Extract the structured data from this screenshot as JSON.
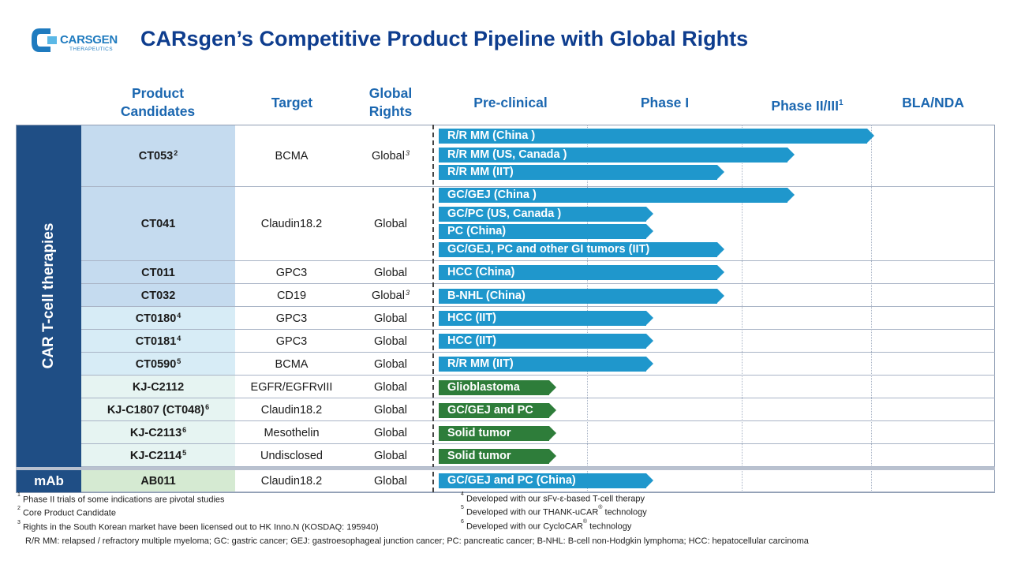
{
  "logo": {
    "name": "CARSGEN",
    "sub": "THERAPEUTICS"
  },
  "title": "CARsgen’s Competitive Product Pipeline with Global Rights",
  "headers": {
    "product": "Product Candidates",
    "target": "Target",
    "rights": "Global Rights",
    "preclinical": "Pre-clinical",
    "phase1": "Phase I",
    "phase23": "Phase II/III",
    "phase23_sup": "1",
    "bla": "BLA/NDA"
  },
  "groups": {
    "car": "CAR T-cell therapies",
    "mab": "mAb"
  },
  "rows": [
    {
      "name": "CT053",
      "sup": "2",
      "target": "BCMA",
      "rights": "Global",
      "rights_sup": "3"
    },
    {
      "name": "CT041",
      "sup": "",
      "target": "Claudin18.2",
      "rights": "Global",
      "rights_sup": ""
    },
    {
      "name": "CT011",
      "sup": "",
      "target": "GPC3",
      "rights": "Global",
      "rights_sup": ""
    },
    {
      "name": "CT032",
      "sup": "",
      "target": "CD19",
      "rights": "Global",
      "rights_sup": "3"
    },
    {
      "name": "CT0180",
      "sup": "4",
      "target": "GPC3",
      "rights": "Global",
      "rights_sup": ""
    },
    {
      "name": "CT0181",
      "sup": "4",
      "target": "GPC3",
      "rights": "Global",
      "rights_sup": ""
    },
    {
      "name": "CT0590",
      "sup": "5",
      "target": "BCMA",
      "rights": "Global",
      "rights_sup": ""
    },
    {
      "name": "KJ-C2112",
      "sup": "",
      "target": "EGFR/EGFRvIII",
      "rights": "Global",
      "rights_sup": ""
    },
    {
      "name": "KJ-C1807 (CT048)",
      "sup": "6",
      "target": "Claudin18.2",
      "rights": "Global",
      "rights_sup": ""
    },
    {
      "name": "KJ-C2113",
      "sup": "6",
      "target": "Mesothelin",
      "rights": "Global",
      "rights_sup": ""
    },
    {
      "name": "KJ-C2114",
      "sup": "5",
      "target": "Undisclosed",
      "rights": "Global",
      "rights_sup": ""
    },
    {
      "name": "AB011",
      "sup": "",
      "target": "Claudin18.2",
      "rights": "Global",
      "rights_sup": ""
    }
  ],
  "indications": [
    {
      "label": "R/R MM (China )",
      "color": "#1f97cc",
      "progress": 0.97
    },
    {
      "label": "R/R MM (US, Canada )",
      "color": "#1f97cc",
      "progress": 0.79
    },
    {
      "label": "R/R MM (IIT)",
      "color": "#1f97cc",
      "progress": 0.63
    },
    {
      "label": "GC/GEJ (China )",
      "color": "#1f97cc",
      "progress": 0.79
    },
    {
      "label": "GC/PC (US, Canada )",
      "color": "#1f97cc",
      "progress": 0.47
    },
    {
      "label": "PC (China)",
      "color": "#1f97cc",
      "progress": 0.47
    },
    {
      "label": "GC/GEJ, PC and other GI tumors (IIT)",
      "color": "#1f97cc",
      "progress": 0.63
    },
    {
      "label": "HCC (China)",
      "color": "#1f97cc",
      "progress": 0.63
    },
    {
      "label": "B-NHL (China)",
      "color": "#1f97cc",
      "progress": 0.63
    },
    {
      "label": "HCC (IIT)",
      "color": "#1f97cc",
      "progress": 0.47
    },
    {
      "label": "HCC (IIT)",
      "color": "#1f97cc",
      "progress": 0.47
    },
    {
      "label": "R/R MM (IIT)",
      "color": "#1f97cc",
      "progress": 0.47
    },
    {
      "label": "Glioblastoma",
      "color": "#2e7d3a",
      "progress": 0.25
    },
    {
      "label": "GC/GEJ and PC",
      "color": "#2e7d3a",
      "progress": 0.25
    },
    {
      "label": "Solid tumor",
      "color": "#2e7d3a",
      "progress": 0.25
    },
    {
      "label": "Solid tumor",
      "color": "#2e7d3a",
      "progress": 0.25
    },
    {
      "label": "GC/GEJ and PC (China)",
      "color": "#1f97cc",
      "progress": 0.47
    }
  ],
  "footnotes": {
    "f1": "Phase II trials of some indications are pivotal studies",
    "f2": "Core Product Candidate",
    "f3": "Rights in the South Korean market have  been licensed out to HK Inno.N (KOSDAQ:  195940)",
    "f4": "Developed with our sFv-ε-based T-cell therapy",
    "f5a": "Developed with our THANK-uCAR",
    "f5b": "  technology",
    "f6a": "Developed with our CycloCAR",
    "f6b": " technology",
    "reg": "®",
    "abbrev": "R/R MM:  relapsed / refractory  multiple myeloma; GC: gastric cancer;  GEJ:  gastroesophageal junction cancer; PC: pancreatic cancer;  B-NHL: B-cell non-Hodgkin lymphoma; HCC: hepatocellular carcinoma"
  }
}
